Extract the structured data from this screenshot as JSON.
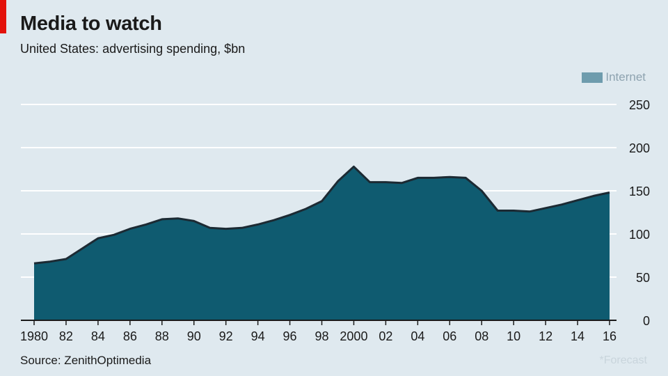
{
  "title": "Media to watch",
  "subtitle": "United States: advertising spending, $bn",
  "source": "Source: ZenithOptimedia",
  "footnote": "*Forecast",
  "colors": {
    "background": "#dfe9ef",
    "area_fill": "#0f5b70",
    "area_line": "#1c2a33",
    "legend_swatch": "#6e9cad",
    "accent": "#e3120b"
  },
  "chart_data": {
    "type": "area",
    "x": [
      1980,
      1981,
      1982,
      1983,
      1984,
      1985,
      1986,
      1987,
      1988,
      1989,
      1990,
      1991,
      1992,
      1993,
      1994,
      1995,
      1996,
      1997,
      1998,
      1999,
      2000,
      2001,
      2002,
      2003,
      2004,
      2005,
      2006,
      2007,
      2008,
      2009,
      2010,
      2011,
      2012,
      2013,
      2014,
      2015,
      2016
    ],
    "series": [
      {
        "name": "",
        "values": [
          66,
          68,
          71,
          83,
          95,
          99,
          106,
          111,
          117,
          118,
          115,
          107,
          106,
          107,
          111,
          116,
          122,
          129,
          138,
          161,
          178,
          160,
          160,
          159,
          165,
          165,
          166,
          165,
          150,
          127,
          127,
          126,
          130,
          134,
          139,
          144,
          148
        ]
      }
    ],
    "legend": [
      "Internet"
    ],
    "legend_position": "top-right",
    "xlim": [
      1980,
      2016
    ],
    "ylim": [
      0,
      250
    ],
    "y_ticks": [
      0,
      50,
      100,
      150,
      200,
      250
    ],
    "y_axis_side": "right",
    "x_ticks": [
      1980,
      1982,
      1984,
      1986,
      1988,
      1990,
      1992,
      1994,
      1996,
      1998,
      2000,
      2002,
      2004,
      2006,
      2008,
      2010,
      2012,
      2014,
      2016
    ],
    "x_tick_labels": [
      "1980",
      "82",
      "84",
      "86",
      "88",
      "90",
      "92",
      "94",
      "96",
      "98",
      "2000",
      "02",
      "04",
      "06",
      "08",
      "10",
      "12",
      "14",
      "16"
    ],
    "grid": true
  }
}
